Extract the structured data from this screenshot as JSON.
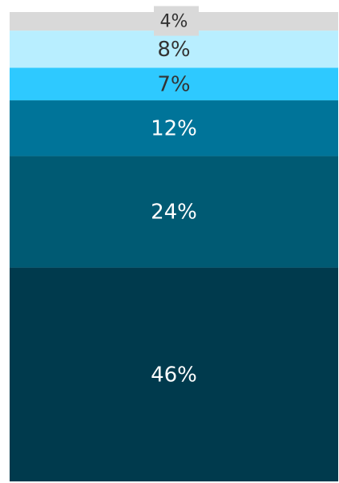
{
  "chart_data": {
    "type": "stacked_bar",
    "series": [
      {
        "color": "#003a4d",
        "values": [
          46
        ],
        "value_labels": [
          "46%"
        ]
      },
      {
        "color": "#005a73",
        "values": [
          24
        ],
        "value_labels": [
          "24%"
        ]
      },
      {
        "color": "#007499",
        "values": [
          12
        ],
        "value_labels": [
          "12%"
        ]
      },
      {
        "color": "#2ec9ff",
        "values": [
          7
        ],
        "value_labels": [
          "7%"
        ]
      },
      {
        "color": "#b8eeff",
        "values": [
          8
        ],
        "value_labels": [
          "8%"
        ]
      },
      {
        "color": "#d9d9d9",
        "values": [
          4
        ],
        "value_labels": [
          "4%"
        ]
      }
    ]
  }
}
